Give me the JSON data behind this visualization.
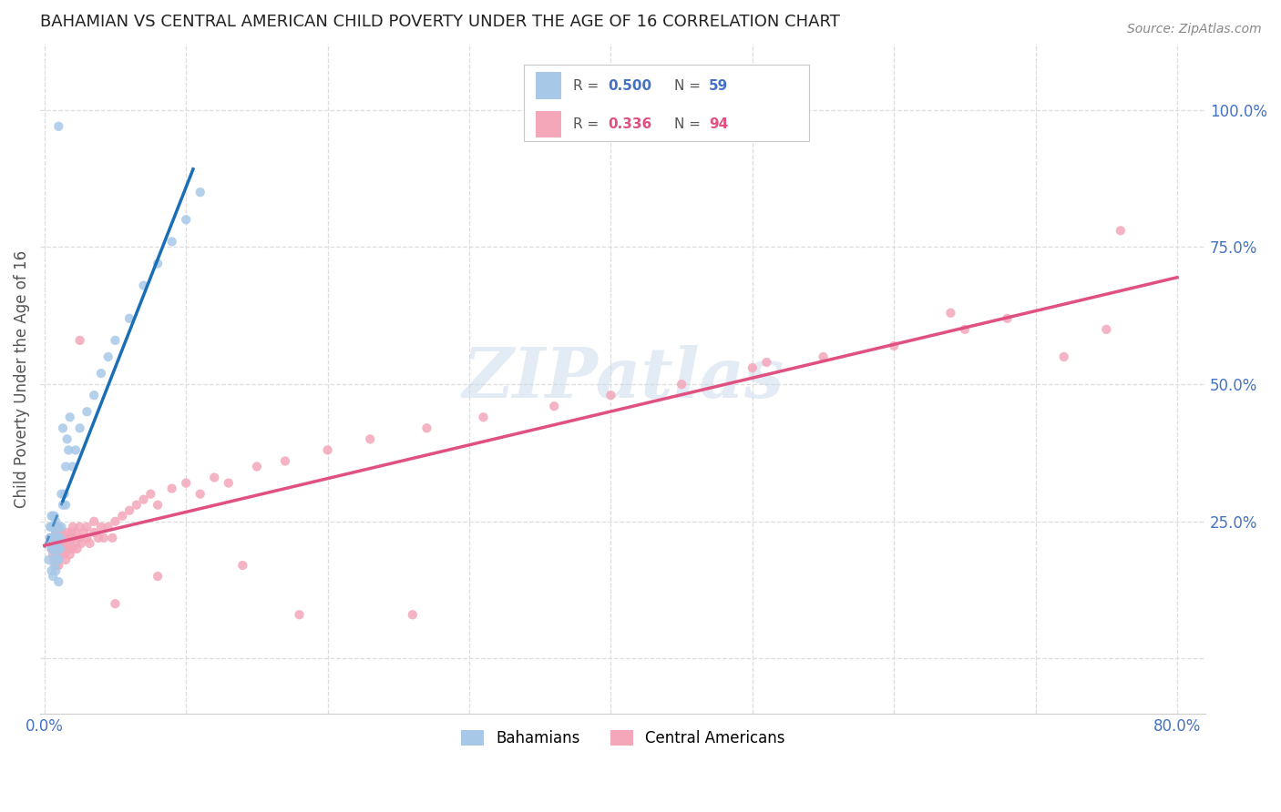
{
  "title": "BAHAMIAN VS CENTRAL AMERICAN CHILD POVERTY UNDER THE AGE OF 16 CORRELATION CHART",
  "source": "Source: ZipAtlas.com",
  "ylabel": "Child Poverty Under the Age of 16",
  "xlim": [
    -0.003,
    0.82
  ],
  "ylim": [
    -0.1,
    1.12
  ],
  "xtick_positions": [
    0.0,
    0.1,
    0.2,
    0.3,
    0.4,
    0.5,
    0.6,
    0.7,
    0.8
  ],
  "xticklabels": [
    "0.0%",
    "",
    "",
    "",
    "",
    "",
    "",
    "",
    "80.0%"
  ],
  "ytick_right_positions": [
    0.0,
    0.25,
    0.5,
    0.75,
    1.0
  ],
  "yticklabels_right": [
    "",
    "25.0%",
    "50.0%",
    "75.0%",
    "100.0%"
  ],
  "watermark": "ZIPatlas",
  "blue_color": "#a8c8e8",
  "pink_color": "#f4a7b9",
  "blue_line_color": "#1a6eb5",
  "pink_line_color": "#e05080",
  "title_color": "#222222",
  "axis_label_color": "#555555",
  "tick_color": "#4472C4",
  "grid_color": "#dddddd",
  "source_color": "#888888",
  "legend_r_color_blue": "#4472C4",
  "legend_r_color_pink": "#e05080",
  "legend_n_color_blue": "#4472C4",
  "legend_n_color_pink": "#e05080",
  "bah_x": [
    0.003,
    0.004,
    0.004,
    0.005,
    0.005,
    0.005,
    0.005,
    0.005,
    0.006,
    0.006,
    0.006,
    0.006,
    0.006,
    0.007,
    0.007,
    0.007,
    0.007,
    0.007,
    0.008,
    0.008,
    0.008,
    0.008,
    0.008,
    0.009,
    0.009,
    0.009,
    0.009,
    0.01,
    0.01,
    0.01,
    0.01,
    0.01,
    0.011,
    0.011,
    0.012,
    0.012,
    0.013,
    0.013,
    0.014,
    0.015,
    0.015,
    0.016,
    0.017,
    0.018,
    0.02,
    0.022,
    0.025,
    0.03,
    0.035,
    0.04,
    0.045,
    0.05,
    0.06,
    0.07,
    0.08,
    0.09,
    0.1,
    0.11,
    0.01
  ],
  "bah_y": [
    0.18,
    0.22,
    0.24,
    0.2,
    0.22,
    0.24,
    0.26,
    0.16,
    0.2,
    0.22,
    0.24,
    0.26,
    0.15,
    0.2,
    0.22,
    0.24,
    0.26,
    0.17,
    0.19,
    0.21,
    0.23,
    0.25,
    0.16,
    0.2,
    0.22,
    0.24,
    0.18,
    0.2,
    0.22,
    0.24,
    0.18,
    0.14,
    0.2,
    0.22,
    0.24,
    0.3,
    0.28,
    0.42,
    0.3,
    0.28,
    0.35,
    0.4,
    0.38,
    0.44,
    0.35,
    0.38,
    0.42,
    0.45,
    0.48,
    0.52,
    0.55,
    0.58,
    0.62,
    0.68,
    0.72,
    0.76,
    0.8,
    0.85,
    0.97
  ],
  "ca_x": [
    0.004,
    0.005,
    0.006,
    0.006,
    0.007,
    0.007,
    0.007,
    0.008,
    0.008,
    0.008,
    0.008,
    0.009,
    0.009,
    0.009,
    0.01,
    0.01,
    0.01,
    0.01,
    0.011,
    0.011,
    0.012,
    0.012,
    0.012,
    0.013,
    0.013,
    0.014,
    0.014,
    0.015,
    0.015,
    0.015,
    0.016,
    0.016,
    0.017,
    0.017,
    0.018,
    0.018,
    0.019,
    0.02,
    0.02,
    0.02,
    0.022,
    0.022,
    0.023,
    0.025,
    0.025,
    0.026,
    0.028,
    0.03,
    0.03,
    0.032,
    0.035,
    0.035,
    0.038,
    0.04,
    0.042,
    0.045,
    0.048,
    0.05,
    0.055,
    0.06,
    0.065,
    0.07,
    0.075,
    0.08,
    0.09,
    0.1,
    0.11,
    0.12,
    0.13,
    0.15,
    0.17,
    0.2,
    0.23,
    0.27,
    0.31,
    0.36,
    0.4,
    0.45,
    0.5,
    0.55,
    0.6,
    0.65,
    0.68,
    0.72,
    0.75,
    0.76,
    0.51,
    0.64,
    0.26,
    0.18,
    0.14,
    0.08,
    0.05,
    0.025
  ],
  "ca_y": [
    0.22,
    0.2,
    0.19,
    0.21,
    0.18,
    0.2,
    0.22,
    0.19,
    0.21,
    0.23,
    0.17,
    0.2,
    0.22,
    0.18,
    0.19,
    0.21,
    0.23,
    0.17,
    0.2,
    0.22,
    0.19,
    0.21,
    0.23,
    0.2,
    0.22,
    0.19,
    0.21,
    0.2,
    0.22,
    0.18,
    0.21,
    0.23,
    0.2,
    0.22,
    0.19,
    0.21,
    0.23,
    0.2,
    0.22,
    0.24,
    0.21,
    0.23,
    0.2,
    0.22,
    0.24,
    0.21,
    0.23,
    0.22,
    0.24,
    0.21,
    0.23,
    0.25,
    0.22,
    0.24,
    0.22,
    0.24,
    0.22,
    0.25,
    0.26,
    0.27,
    0.28,
    0.29,
    0.3,
    0.28,
    0.31,
    0.32,
    0.3,
    0.33,
    0.32,
    0.35,
    0.36,
    0.38,
    0.4,
    0.42,
    0.44,
    0.46,
    0.48,
    0.5,
    0.53,
    0.55,
    0.57,
    0.6,
    0.62,
    0.55,
    0.6,
    0.78,
    0.54,
    0.63,
    0.08,
    0.08,
    0.17,
    0.15,
    0.1,
    0.58
  ]
}
